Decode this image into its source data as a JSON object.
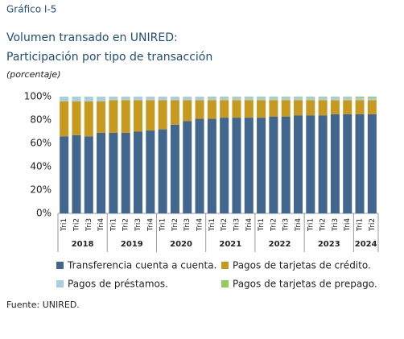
{
  "chart_data": {
    "type": "stacked-bar",
    "label": "Gráfico I-5",
    "title": [
      "Volumen transado en UNIRED:",
      "Participación por tipo de transacción"
    ],
    "subtitle": "(porcentaje)",
    "source": "Fuente: UNIRED.",
    "categories": [
      "Tri1",
      "Tri2",
      "Tri3",
      "Tri4",
      "Tri1",
      "Tri2",
      "Tri3",
      "Tri4",
      "Tri1",
      "Tri2",
      "Tri3",
      "Tri4",
      "Tri1",
      "Tri2",
      "Tri3",
      "Tri4",
      "Tri1",
      "Tri2",
      "Tri3",
      "Tri4",
      "Tri1",
      "Tri2",
      "Tri3",
      "Tri4",
      "Tri1",
      "Tri2"
    ],
    "years": [
      "2018",
      null,
      null,
      null,
      "2019",
      null,
      null,
      null,
      "2020",
      null,
      null,
      null,
      "2021",
      null,
      null,
      null,
      "2022",
      null,
      null,
      null,
      "2023",
      null,
      null,
      null,
      "2024",
      null
    ],
    "series": [
      {
        "name": "Transferencia cuenta a cuenta.",
        "color": "#41678e",
        "values": [
          66,
          67,
          66,
          69,
          69,
          69,
          70,
          71,
          72,
          76,
          79,
          81,
          81,
          82,
          82,
          82,
          82,
          83,
          83,
          84,
          84,
          84,
          85,
          85,
          85,
          85
        ]
      },
      {
        "name": "Pagos de tarjetas de crédito.",
        "color": "#c79a1f",
        "values": [
          30,
          29,
          30,
          27,
          28,
          28,
          27,
          26,
          25,
          21,
          18,
          16,
          16,
          15,
          15,
          15,
          15,
          14,
          14,
          13,
          13,
          13,
          12,
          12,
          12,
          12
        ]
      },
      {
        "name": "Pagos de préstamos.",
        "color": "#a8cfe0",
        "values": [
          4,
          4,
          4,
          4,
          3,
          3,
          3,
          3,
          3,
          3,
          3,
          3,
          2.5,
          2.5,
          2.5,
          2.5,
          2.5,
          2.5,
          2.5,
          2.5,
          2.5,
          2.5,
          2.5,
          2.5,
          2,
          2
        ]
      },
      {
        "name": "Pagos de tarjetas de prepago.",
        "color": "#8fcd5c",
        "values": [
          0,
          0,
          0,
          0,
          0,
          0,
          0,
          0,
          0,
          0,
          0,
          0,
          0.5,
          0.5,
          0.5,
          0.5,
          0.5,
          0.5,
          0.5,
          0.5,
          0.5,
          0.5,
          0.5,
          0.5,
          1,
          1
        ]
      }
    ],
    "ylim": [
      0,
      100
    ],
    "yticks": [
      {
        "value": 0,
        "label": "0%"
      },
      {
        "value": 20,
        "label": "20%"
      },
      {
        "value": 40,
        "label": "40%"
      },
      {
        "value": 60,
        "label": "60%"
      },
      {
        "value": 80,
        "label": "80%"
      },
      {
        "value": 100,
        "label": "100%"
      }
    ],
    "grid": false
  }
}
